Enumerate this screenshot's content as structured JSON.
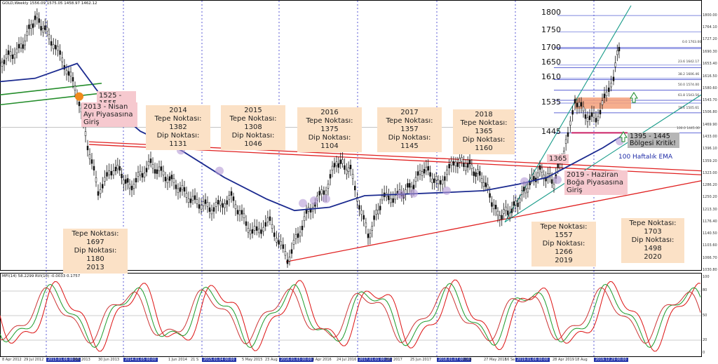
{
  "header": "GOLD,Weekly  1556.09 1575.05 1458.97 1462.12",
  "chart_data": {
    "type": "candlestick",
    "symbol": "GOLD",
    "timeframe": "Weekly",
    "ohlc_last": {
      "open": 1556.09,
      "high": 1575.05,
      "low": 1458.97,
      "close": 1462.12
    },
    "price_range": [
      1030,
      1830
    ],
    "last_price": 1462.12,
    "path_series": {
      "name": "price",
      "points": [
        [
          0,
          1660
        ],
        [
          30,
          1700
        ],
        [
          50,
          1795
        ],
        [
          70,
          1740
        ],
        [
          95,
          1640
        ],
        [
          110,
          1570
        ],
        [
          125,
          1410
        ],
        [
          140,
          1270
        ],
        [
          165,
          1345
        ],
        [
          185,
          1280
        ],
        [
          215,
          1350
        ],
        [
          245,
          1300
        ],
        [
          275,
          1240
        ],
        [
          305,
          1215
        ],
        [
          330,
          1250
        ],
        [
          360,
          1140
        ],
        [
          385,
          1175
        ],
        [
          410,
          1060
        ],
        [
          440,
          1210
        ],
        [
          465,
          1275
        ],
        [
          480,
          1360
        ],
        [
          500,
          1330
        ],
        [
          525,
          1130
        ],
        [
          545,
          1245
        ],
        [
          570,
          1255
        ],
        [
          590,
          1290
        ],
        [
          605,
          1340
        ],
        [
          625,
          1290
        ],
        [
          650,
          1360
        ],
        [
          670,
          1345
        ],
        [
          690,
          1300
        ],
        [
          710,
          1195
        ],
        [
          730,
          1210
        ],
        [
          750,
          1275
        ],
        [
          770,
          1330
        ],
        [
          790,
          1295
        ],
        [
          810,
          1430
        ],
        [
          820,
          1550
        ],
        [
          835,
          1500
        ],
        [
          850,
          1485
        ],
        [
          865,
          1560
        ],
        [
          875,
          1620
        ],
        [
          883,
          1705
        ],
        [
          887,
          1460
        ]
      ]
    },
    "ema_100": {
      "name": "100 Haftalık EMA",
      "points": [
        [
          0,
          1600
        ],
        [
          50,
          1610
        ],
        [
          110,
          1655
        ],
        [
          150,
          1540
        ],
        [
          200,
          1450
        ],
        [
          260,
          1390
        ],
        [
          320,
          1310
        ],
        [
          380,
          1245
        ],
        [
          420,
          1210
        ],
        [
          470,
          1220
        ],
        [
          520,
          1255
        ],
        [
          580,
          1260
        ],
        [
          640,
          1265
        ],
        [
          690,
          1270
        ],
        [
          740,
          1290
        ],
        [
          780,
          1310
        ],
        [
          820,
          1355
        ],
        [
          860,
          1400
        ],
        [
          890,
          1440
        ]
      ]
    },
    "resistance_levels": [
      1800,
      1750,
      1700,
      1650,
      1610,
      1535,
      1445
    ],
    "fibonacci": [
      {
        "label": "0.0 1703.00",
        "value": 1703.0
      },
      {
        "label": "23.6 1642.17",
        "value": 1642.17
      },
      {
        "label": "38.2 1606.46",
        "value": 1606.46
      },
      {
        "label": "50.0 1574.00",
        "value": 1574.0
      },
      {
        "label": "61.8 1543.56",
        "value": 1543.56
      },
      {
        "label": "78.6 1505.61",
        "value": 1505.61
      },
      {
        "label": "100.0 1445.00",
        "value": 1445.0
      }
    ],
    "y_ticks": [
      "1800.00",
      "1764.10",
      "1727.20",
      "1690.30",
      "1653.40",
      "1616.50",
      "1580.60",
      "1543.70",
      "1506.80",
      "1469.90",
      "1433.00",
      "1396.10",
      "1359.20",
      "1323.00",
      "1286.20",
      "1250.20",
      "1213.30",
      "1176.40",
      "1140.50",
      "1103.60",
      "1066.70",
      "1030.80"
    ],
    "x_labels": [
      "8 Apr 2012",
      "29 Jul 2012",
      "2013.01.06 00:00",
      "Mar 2013",
      "30 Jun 2013",
      "2014.01.05 00:00",
      "1 Jun 2014",
      "21 S",
      "2015.01.04 00:00",
      "5 May 2015",
      "23 Aug",
      "2016.01.03 00:00",
      "3 Apr 2016",
      "24 Jul 2016",
      "2017.01.01 00:00",
      "Mar 2017",
      "25 Jun 2017",
      "2018.01.07 00:00",
      "2018",
      "27 May 2018",
      "16 Se",
      "2019.01.06 00:00",
      "28 Apr 2019",
      "18 Aug",
      "2019.12.29 00:00"
    ],
    "highlighted_x": [
      "2013.01.06 00:00",
      "2014.01.05 00:00",
      "2015.01.04 00:00",
      "2016.01.03 00:00",
      "2017.01.01 00:00",
      "2018.01.07 00:00",
      "2019.01.06 00:00",
      "2019.12.29 00:00"
    ]
  },
  "annotations": {
    "y2013": {
      "lines": [
        "Tepe Noktası: 1697",
        "Dip Noktası: 1180",
        "2013"
      ]
    },
    "y2014": {
      "lines": [
        "2014",
        "Tepe Noktası: 1382",
        "Dip Noktası: 1131"
      ]
    },
    "y2015": {
      "lines": [
        "2015",
        "Tepe Noktası: 1308",
        "Dip Noktası: 1046"
      ]
    },
    "y2016": {
      "lines": [
        "2016",
        "Tepe Noktası: 1375",
        "Dip Noktası: 1104"
      ]
    },
    "y2017": {
      "lines": [
        "2017",
        "Tepe Noktası: 1357",
        "Dip Noktası: 1145"
      ]
    },
    "y2018": {
      "lines": [
        "2018",
        "Tepe Noktası: 1365",
        "Dip Noktası: 1160"
      ]
    },
    "y2019": {
      "lines": [
        "Tepe Noktası: 1557",
        "Dip Noktası: 1266",
        "2019"
      ]
    },
    "y2020": {
      "lines": [
        "Tepe Noktası: 1703",
        "Dip Noktası: 1498",
        "2020"
      ]
    },
    "range_1525": "1525 - 1555",
    "bear_2013": [
      "2013 - Nisan",
      "Ayı Piyasasına Giriş"
    ],
    "bull_2019": [
      "2019 - Haziran",
      "Boğa Piyasasına Giriş"
    ],
    "label_1365": "1365",
    "critical_zone": [
      "1395 - 1445",
      "Bölgesi Kritik!"
    ],
    "ema_label": "100 Haftalık EMA"
  },
  "indicator": {
    "header": "MFI(14) 58.2299  RVI(10) -0.0033 0.1757",
    "ticks": [
      "100",
      "80",
      "50",
      "20",
      "0"
    ]
  }
}
